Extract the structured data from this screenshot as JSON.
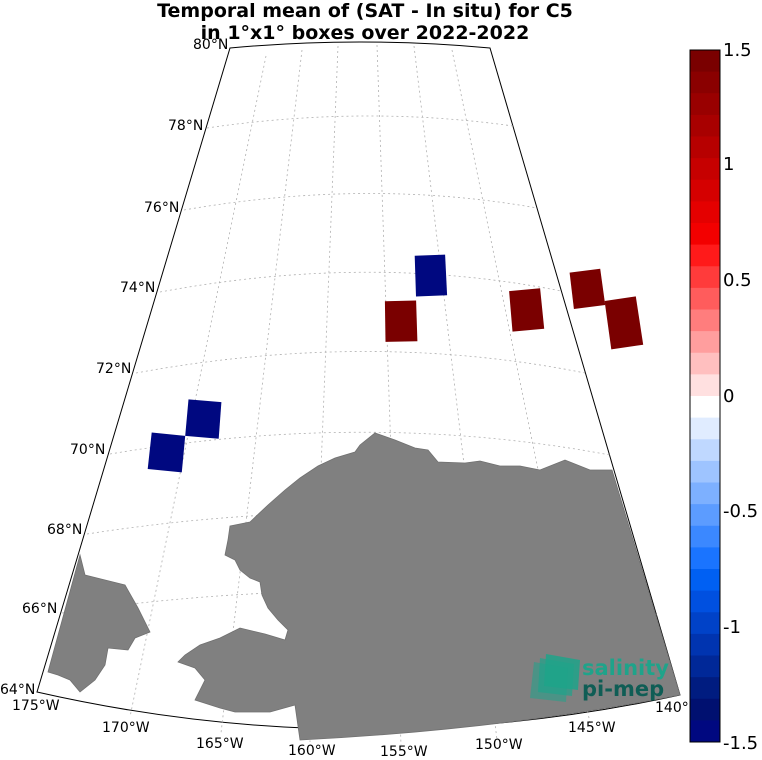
{
  "title": {
    "line1": "Temporal mean of (SAT - In situ) for C5",
    "line2": "in 1°x1° boxes over 2022-2022"
  },
  "map": {
    "latitude_labels": [
      "80°N",
      "78°N",
      "76°N",
      "74°N",
      "72°N",
      "70°N",
      "68°N",
      "66°N",
      "64°N"
    ],
    "longitude_labels": [
      "175°W",
      "170°W",
      "165°W",
      "160°W",
      "155°W",
      "150°W",
      "145°W",
      "140°"
    ],
    "land_color": "#808080",
    "grid_style": "dotted",
    "salinity_boxes": [
      {
        "lon_range": [
          -156,
          -155
        ],
        "lat_range": [
          73.8,
          74.8
        ],
        "value": -1.5
      },
      {
        "lon_range": [
          -157,
          -156
        ],
        "lat_range": [
          72.7,
          73.7
        ],
        "value": 1.5
      },
      {
        "lon_range": [
          -153,
          -152
        ],
        "lat_range": [
          72.8,
          73.8
        ],
        "value": 1.5
      },
      {
        "lon_range": [
          -151,
          -150
        ],
        "lat_range": [
          73.2,
          74.1
        ],
        "value": 1.5
      },
      {
        "lon_range": [
          -150,
          -149
        ],
        "lat_range": [
          72.1,
          73.3
        ],
        "value": 1.5
      },
      {
        "lon_range": [
          -163,
          -162
        ],
        "lat_range": [
          70.2,
          71.1
        ],
        "value": -1.5
      },
      {
        "lon_range": [
          -164,
          -163
        ],
        "lat_range": [
          69.3,
          70.2
        ],
        "value": -1.5
      }
    ]
  },
  "colorbar": {
    "ticks": [
      "1.5",
      "1",
      "0.5",
      "0",
      "-0.5",
      "-1",
      "-1.5"
    ],
    "range": [
      -1.5,
      1.5
    ],
    "colors_top_to_bottom": [
      "#7a0000",
      "#8a0000",
      "#990000",
      "#a80000",
      "#b70000",
      "#c60000",
      "#d50000",
      "#e40000",
      "#f30000",
      "#ff1a1a",
      "#ff3b3b",
      "#ff5c5c",
      "#ff7d7d",
      "#ff9e9e",
      "#ffbfbf",
      "#ffe0e0",
      "#ffffff",
      "#e0ecff",
      "#bfd8ff",
      "#9ec4ff",
      "#7db0ff",
      "#5c9cff",
      "#3b88ff",
      "#1a74ff",
      "#0060f3",
      "#0050e0",
      "#0042c8",
      "#0034b0",
      "#002898",
      "#001c80",
      "#001070",
      "#000880"
    ]
  },
  "logo": {
    "line1": "salinity",
    "line2": "pi-mep",
    "color": "#1fa38a"
  }
}
